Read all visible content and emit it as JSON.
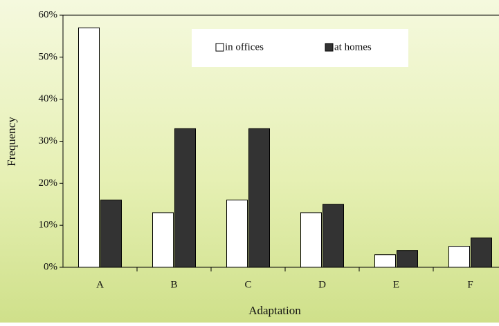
{
  "chart_data": {
    "type": "bar",
    "x_label": "Adaptation",
    "y_label": "Frequency",
    "categories": [
      "A",
      "B",
      "C",
      "D",
      "E",
      "F"
    ],
    "series": [
      {
        "name": "in offices",
        "color": "#ffffff",
        "values": [
          57,
          13,
          16,
          13,
          3,
          5
        ]
      },
      {
        "name": "at homes",
        "color": "#333333",
        "values": [
          16,
          33,
          33,
          15,
          4,
          7
        ]
      }
    ],
    "ylim": [
      0,
      60
    ],
    "yticks": [
      {
        "value": 0,
        "label": "0%"
      },
      {
        "value": 10,
        "label": "10%"
      },
      {
        "value": 20,
        "label": "20%"
      },
      {
        "value": 30,
        "label": "30%"
      },
      {
        "value": 40,
        "label": "40%"
      },
      {
        "value": 50,
        "label": "50%"
      },
      {
        "value": 60,
        "label": "60%"
      }
    ],
    "grid": false,
    "legend": "top"
  }
}
